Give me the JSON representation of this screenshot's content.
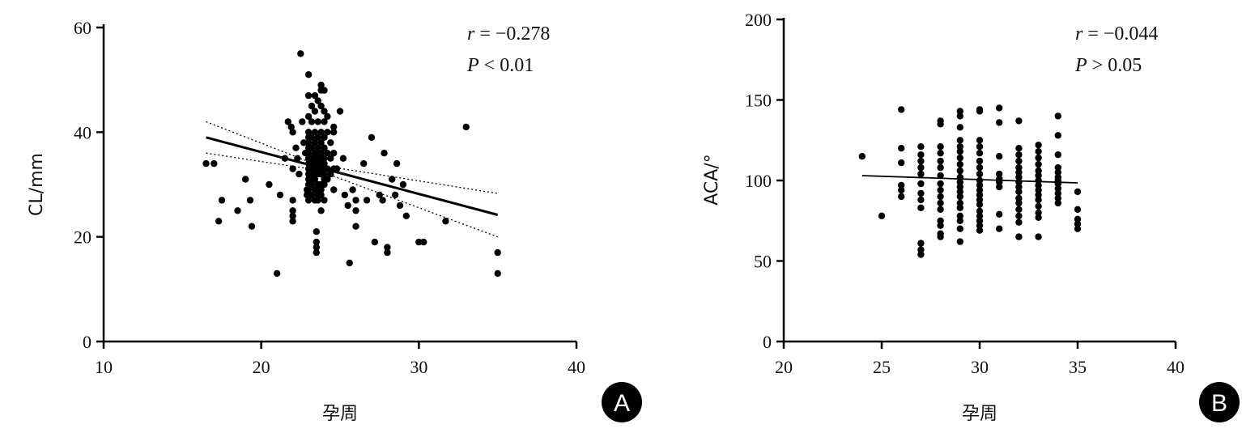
{
  "chart_data": [
    {
      "type": "scatter",
      "panel_letter": "A",
      "xlabel": "孕周",
      "ylabel": "CL/mm",
      "xlim": [
        10,
        40
      ],
      "ylim": [
        0,
        60
      ],
      "xticks": [
        10,
        20,
        30,
        40
      ],
      "yticks": [
        0,
        20,
        40,
        60
      ],
      "stats": {
        "r_symbol": "r",
        "r_text": " = −0.278",
        "p_symbol": "P",
        "p_text": " < 0.01"
      },
      "regression": {
        "x": [
          16.5,
          35
        ],
        "y": [
          39,
          24.2
        ]
      },
      "confidence_band": {
        "upper": {
          "x": [
            16.5,
            23.5,
            35
          ],
          "y": [
            42,
            33.8,
            28.3
          ]
        },
        "lower": {
          "x": [
            16.5,
            23.5,
            35
          ],
          "y": [
            36,
            32.8,
            20
          ]
        }
      },
      "points": [
        [
          16.5,
          34
        ],
        [
          17,
          34
        ],
        [
          17.3,
          23
        ],
        [
          17.5,
          27
        ],
        [
          18.5,
          25
        ],
        [
          19,
          31
        ],
        [
          19.3,
          27
        ],
        [
          19.4,
          22
        ],
        [
          20.5,
          30
        ],
        [
          21,
          13
        ],
        [
          21.2,
          28
        ],
        [
          21.5,
          35
        ],
        [
          21.7,
          42
        ],
        [
          21.9,
          41
        ],
        [
          22,
          40
        ],
        [
          22,
          33
        ],
        [
          22,
          27
        ],
        [
          22,
          25
        ],
        [
          22,
          24
        ],
        [
          22,
          23
        ],
        [
          22.2,
          37
        ],
        [
          22.3,
          35
        ],
        [
          22.4,
          32
        ],
        [
          22.5,
          55
        ],
        [
          22.6,
          42
        ],
        [
          22.7,
          38
        ],
        [
          22.8,
          36
        ],
        [
          22.9,
          29
        ],
        [
          22.9,
          28
        ],
        [
          23,
          51
        ],
        [
          23,
          47
        ],
        [
          23,
          43
        ],
        [
          23,
          40
        ],
        [
          23,
          39
        ],
        [
          23,
          38
        ],
        [
          23,
          37
        ],
        [
          23,
          36
        ],
        [
          23,
          35
        ],
        [
          23,
          34
        ],
        [
          23,
          33
        ],
        [
          23,
          32
        ],
        [
          23,
          31
        ],
        [
          23,
          30
        ],
        [
          23,
          29
        ],
        [
          23,
          27
        ],
        [
          23.2,
          45
        ],
        [
          23.2,
          42
        ],
        [
          23.2,
          39
        ],
        [
          23.2,
          37
        ],
        [
          23.2,
          35
        ],
        [
          23.2,
          34
        ],
        [
          23.2,
          33
        ],
        [
          23.2,
          32
        ],
        [
          23.2,
          31
        ],
        [
          23.2,
          30
        ],
        [
          23.2,
          28
        ],
        [
          23.4,
          47
        ],
        [
          23.4,
          44
        ],
        [
          23.4,
          40
        ],
        [
          23.4,
          38
        ],
        [
          23.4,
          36
        ],
        [
          23.4,
          35
        ],
        [
          23.4,
          34
        ],
        [
          23.4,
          33
        ],
        [
          23.4,
          32
        ],
        [
          23.4,
          31
        ],
        [
          23.4,
          29
        ],
        [
          23.4,
          27
        ],
        [
          23.5,
          21
        ],
        [
          23.5,
          19
        ],
        [
          23.5,
          18
        ],
        [
          23.5,
          17
        ],
        [
          23.6,
          46
        ],
        [
          23.6,
          42
        ],
        [
          23.6,
          39
        ],
        [
          23.6,
          37
        ],
        [
          23.6,
          36
        ],
        [
          23.6,
          35
        ],
        [
          23.6,
          34
        ],
        [
          23.6,
          33
        ],
        [
          23.6,
          32
        ],
        [
          23.6,
          30
        ],
        [
          23.6,
          29
        ],
        [
          23.6,
          28
        ],
        [
          23.6,
          27
        ],
        [
          23.8,
          49
        ],
        [
          23.8,
          48
        ],
        [
          23.8,
          45
        ],
        [
          23.8,
          40
        ],
        [
          23.8,
          38
        ],
        [
          23.8,
          36
        ],
        [
          23.8,
          35
        ],
        [
          23.8,
          34
        ],
        [
          23.8,
          33
        ],
        [
          23.8,
          32
        ],
        [
          23.8,
          30
        ],
        [
          23.8,
          29
        ],
        [
          23.8,
          28
        ],
        [
          23.8,
          25
        ],
        [
          24,
          48
        ],
        [
          24,
          44
        ],
        [
          24,
          42
        ],
        [
          24,
          39
        ],
        [
          24,
          37
        ],
        [
          24,
          35
        ],
        [
          24,
          34
        ],
        [
          24,
          33
        ],
        [
          24,
          32
        ],
        [
          24,
          31
        ],
        [
          24,
          30
        ],
        [
          24,
          27
        ],
        [
          24.2,
          43
        ],
        [
          24.2,
          40
        ],
        [
          24.2,
          36
        ],
        [
          24.2,
          33
        ],
        [
          24.2,
          31
        ],
        [
          24.4,
          38
        ],
        [
          24.4,
          35
        ],
        [
          24.4,
          32
        ],
        [
          24.6,
          41
        ],
        [
          24.6,
          40
        ],
        [
          24.6,
          36
        ],
        [
          24.6,
          33
        ],
        [
          24.6,
          29
        ],
        [
          24.8,
          33
        ],
        [
          25,
          44
        ],
        [
          25.2,
          35
        ],
        [
          25.3,
          28
        ],
        [
          25.5,
          26
        ],
        [
          25.6,
          15
        ],
        [
          25.8,
          29
        ],
        [
          26,
          27
        ],
        [
          26,
          25
        ],
        [
          26,
          22
        ],
        [
          26.5,
          34
        ],
        [
          26.7,
          27
        ],
        [
          27,
          39
        ],
        [
          27.2,
          19
        ],
        [
          27.5,
          28
        ],
        [
          27.7,
          27
        ],
        [
          27.8,
          36
        ],
        [
          28,
          18
        ],
        [
          28,
          17
        ],
        [
          28.3,
          31
        ],
        [
          28.5,
          28
        ],
        [
          28.6,
          34
        ],
        [
          28.8,
          26
        ],
        [
          29,
          30
        ],
        [
          29.2,
          24
        ],
        [
          30,
          19
        ],
        [
          30.3,
          19
        ],
        [
          31.7,
          23
        ],
        [
          33,
          41
        ],
        [
          35,
          17
        ],
        [
          35,
          13
        ]
      ]
    },
    {
      "type": "scatter",
      "panel_letter": "B",
      "xlabel": "孕周",
      "ylabel": "ACA/°",
      "xlim": [
        20,
        40
      ],
      "ylim": [
        0,
        200
      ],
      "xticks": [
        20,
        25,
        30,
        35,
        40
      ],
      "yticks": [
        0,
        50,
        100,
        150,
        200
      ],
      "stats": {
        "r_symbol": "r",
        "r_text": " = −0.044",
        "p_symbol": "P",
        "p_text": " > 0.05"
      },
      "regression": {
        "x": [
          24,
          35
        ],
        "y": [
          103,
          98.5
        ]
      },
      "points": [
        [
          24,
          115
        ],
        [
          25,
          78
        ],
        [
          26,
          144
        ],
        [
          26,
          120
        ],
        [
          26,
          111
        ],
        [
          26,
          97
        ],
        [
          26,
          94
        ],
        [
          26,
          90
        ],
        [
          27,
          121
        ],
        [
          27,
          116
        ],
        [
          27,
          112
        ],
        [
          27,
          108
        ],
        [
          27,
          104
        ],
        [
          27,
          98
        ],
        [
          27,
          92
        ],
        [
          27,
          88
        ],
        [
          27,
          83
        ],
        [
          27,
          61
        ],
        [
          27,
          57
        ],
        [
          27,
          54
        ],
        [
          28,
          137
        ],
        [
          28,
          135
        ],
        [
          28,
          121
        ],
        [
          28,
          117
        ],
        [
          28,
          112
        ],
        [
          28,
          108
        ],
        [
          28,
          103
        ],
        [
          28,
          98
        ],
        [
          28,
          94
        ],
        [
          28,
          90
        ],
        [
          28,
          86
        ],
        [
          28,
          82
        ],
        [
          28,
          75
        ],
        [
          28,
          72
        ],
        [
          28,
          67
        ],
        [
          28,
          65
        ],
        [
          29,
          143
        ],
        [
          29,
          140
        ],
        [
          29,
          133
        ],
        [
          29,
          125
        ],
        [
          29,
          121
        ],
        [
          29,
          118
        ],
        [
          29,
          114
        ],
        [
          29,
          110
        ],
        [
          29,
          106
        ],
        [
          29,
          102
        ],
        [
          29,
          99
        ],
        [
          29,
          96
        ],
        [
          29,
          93
        ],
        [
          29,
          90
        ],
        [
          29,
          86
        ],
        [
          29,
          83
        ],
        [
          29,
          78
        ],
        [
          29,
          75
        ],
        [
          29,
          70
        ],
        [
          29,
          62
        ],
        [
          30,
          144
        ],
        [
          30,
          143
        ],
        [
          30,
          125
        ],
        [
          30,
          121
        ],
        [
          30,
          117
        ],
        [
          30,
          112
        ],
        [
          30,
          108
        ],
        [
          30,
          104
        ],
        [
          30,
          100
        ],
        [
          30,
          97
        ],
        [
          30,
          94
        ],
        [
          30,
          91
        ],
        [
          30,
          88
        ],
        [
          30,
          85
        ],
        [
          30,
          81
        ],
        [
          30,
          78
        ],
        [
          30,
          75
        ],
        [
          30,
          72
        ],
        [
          30,
          69
        ],
        [
          31,
          145
        ],
        [
          31,
          136
        ],
        [
          31,
          115
        ],
        [
          31,
          104
        ],
        [
          31,
          101
        ],
        [
          31,
          99
        ],
        [
          31,
          96
        ],
        [
          31,
          79
        ],
        [
          31,
          70
        ],
        [
          32,
          137
        ],
        [
          32,
          120
        ],
        [
          32,
          116
        ],
        [
          32,
          112
        ],
        [
          32,
          108
        ],
        [
          32,
          105
        ],
        [
          32,
          102
        ],
        [
          32,
          99
        ],
        [
          32,
          96
        ],
        [
          32,
          93
        ],
        [
          32,
          89
        ],
        [
          32,
          86
        ],
        [
          32,
          82
        ],
        [
          32,
          78
        ],
        [
          32,
          74
        ],
        [
          32,
          65
        ],
        [
          33,
          122
        ],
        [
          33,
          118
        ],
        [
          33,
          114
        ],
        [
          33,
          110
        ],
        [
          33,
          106
        ],
        [
          33,
          103
        ],
        [
          33,
          100
        ],
        [
          33,
          97
        ],
        [
          33,
          94
        ],
        [
          33,
          91
        ],
        [
          33,
          88
        ],
        [
          33,
          84
        ],
        [
          33,
          80
        ],
        [
          33,
          77
        ],
        [
          33,
          65
        ],
        [
          34,
          140
        ],
        [
          34,
          128
        ],
        [
          34,
          116
        ],
        [
          34,
          108
        ],
        [
          34,
          105
        ],
        [
          34,
          102
        ],
        [
          34,
          100
        ],
        [
          34,
          98
        ],
        [
          34,
          95
        ],
        [
          34,
          92
        ],
        [
          34,
          89
        ],
        [
          34,
          86
        ],
        [
          35,
          93
        ],
        [
          35,
          82
        ],
        [
          35,
          76
        ],
        [
          35,
          73
        ],
        [
          35,
          70
        ]
      ]
    }
  ]
}
